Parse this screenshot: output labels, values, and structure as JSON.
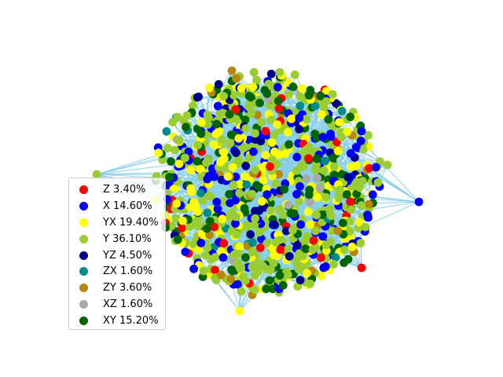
{
  "figure": {
    "edge_color": "#87ceeb",
    "background": "#ffffff"
  },
  "legend": {
    "items": [
      {
        "label": "Z 3.40%",
        "color": "#ff0000",
        "share": 3.4
      },
      {
        "label": "X 14.60%",
        "color": "#0000ff",
        "share": 14.6
      },
      {
        "label": "YX 19.40%",
        "color": "#ffff00",
        "share": 19.4
      },
      {
        "label": "Y 36.10%",
        "color": "#9acd32",
        "share": 36.1
      },
      {
        "label": "YZ 4.50%",
        "color": "#00008b",
        "share": 4.5
      },
      {
        "label": "ZX 1.60%",
        "color": "#008b8b",
        "share": 1.6
      },
      {
        "label": "ZY 3.60%",
        "color": "#b8860b",
        "share": 3.6
      },
      {
        "label": "XZ 1.60%",
        "color": "#a9a9a9",
        "share": 1.6
      },
      {
        "label": "XY 15.20%",
        "color": "#006400",
        "share": 15.2
      }
    ]
  }
}
